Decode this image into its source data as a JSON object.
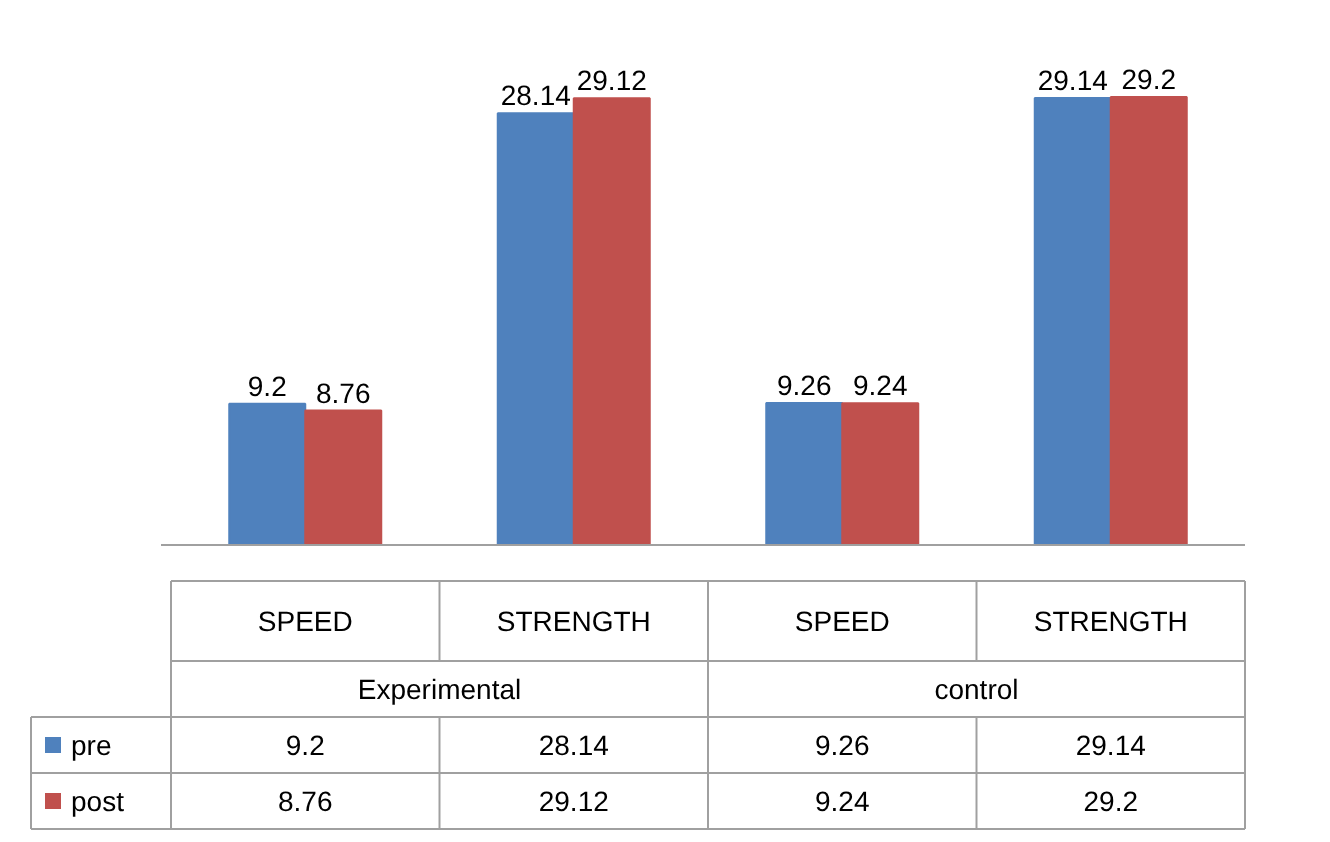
{
  "chart_data": {
    "type": "bar",
    "categories": [
      "SPEED",
      "STRENGTH",
      "SPEED",
      "STRENGTH"
    ],
    "annotations": [
      "Experimental",
      "control",
      "9.2",
      "28.14",
      "9.26",
      "29.14",
      "8.76",
      "29.12",
      "9.24",
      "29.2"
    ],
    "series": [
      {
        "name": "pre",
        "color": "#4f81bd",
        "values": [
          9.2,
          28.14,
          9.26,
          29.14
        ],
        "value_labels": [
          "9.2",
          "28.14",
          "9.26",
          "29.14"
        ]
      },
      {
        "name": "post",
        "color": "#c0504d",
        "values": [
          8.76,
          29.12,
          9.24,
          29.2
        ],
        "value_labels": [
          "8.76",
          "29.12",
          "9.24",
          "29.2"
        ]
      }
    ],
    "data_labels": true,
    "legend": "bottom"
  }
}
